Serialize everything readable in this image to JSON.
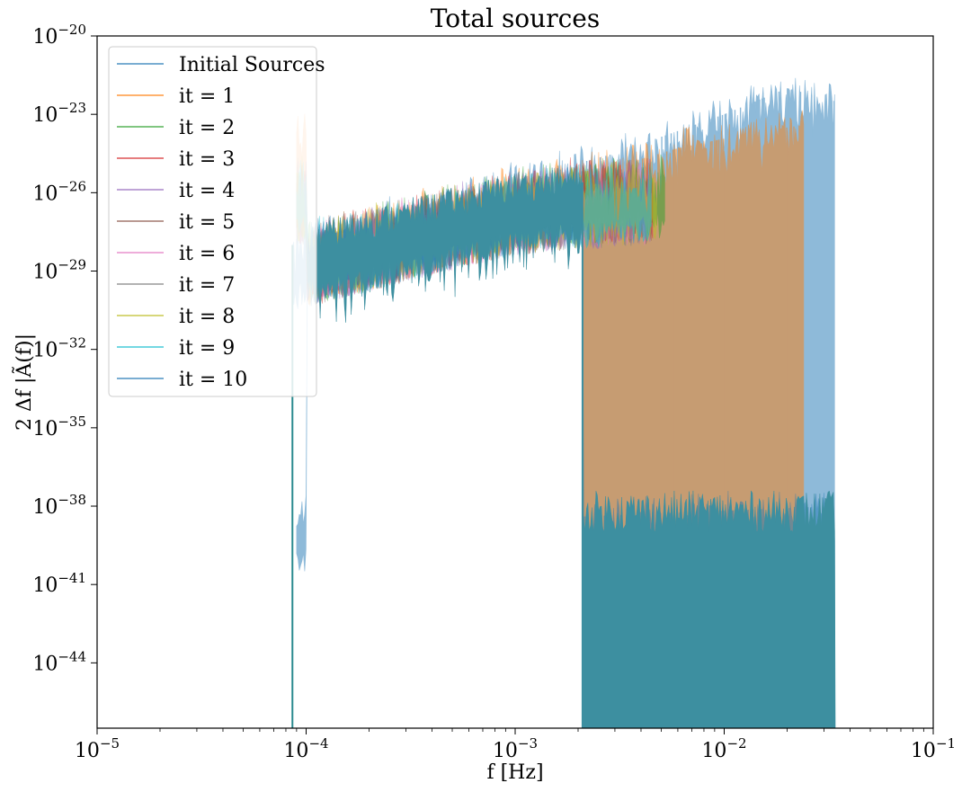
{
  "chart_data": {
    "type": "line",
    "title": "Total sources",
    "xlabel": "f [Hz]",
    "ylabel": "2 Δf |Ã(f)|",
    "xscale": "log",
    "yscale": "log",
    "xlim": [
      1e-05,
      0.1
    ],
    "ylim_exponent": [
      -46.5,
      -20
    ],
    "x_ticks": [
      {
        "base": "10",
        "exp": "−5",
        "value_exp": -5
      },
      {
        "base": "10",
        "exp": "−4",
        "value_exp": -4
      },
      {
        "base": "10",
        "exp": "−3",
        "value_exp": -3
      },
      {
        "base": "10",
        "exp": "−2",
        "value_exp": -2
      },
      {
        "base": "10",
        "exp": "−1",
        "value_exp": -1
      }
    ],
    "y_ticks": [
      {
        "base": "10",
        "exp": "−20",
        "value_exp": -20
      },
      {
        "base": "10",
        "exp": "−23",
        "value_exp": -23
      },
      {
        "base": "10",
        "exp": "−26",
        "value_exp": -26
      },
      {
        "base": "10",
        "exp": "−29",
        "value_exp": -29
      },
      {
        "base": "10",
        "exp": "−32",
        "value_exp": -32
      },
      {
        "base": "10",
        "exp": "−35",
        "value_exp": -35
      },
      {
        "base": "10",
        "exp": "−38",
        "value_exp": -38
      },
      {
        "base": "10",
        "exp": "−41",
        "value_exp": -41
      },
      {
        "base": "10",
        "exp": "−44",
        "value_exp": -44
      }
    ],
    "legend_position": "upper-left",
    "series": [
      {
        "name": "Initial Sources",
        "color": "#1f77b4",
        "alpha": 0.5,
        "f_min": 8.6e-05,
        "f_max": 0.034,
        "envelope": [
          [
            8.6e-05,
            -28.0
          ],
          [
            0.0001,
            -27.8
          ],
          [
            0.001,
            -25.5
          ],
          [
            0.003,
            -24.5
          ],
          [
            0.01,
            -23.0
          ],
          [
            0.02,
            -22.0
          ],
          [
            0.034,
            -22.5
          ]
        ]
      },
      {
        "name": "it = 1",
        "color": "#ff7f0e",
        "alpha": 0.5,
        "f_min": 9e-05,
        "f_max": 0.024,
        "envelope": [
          [
            0.0001,
            -27.8
          ],
          [
            0.001,
            -25.6
          ],
          [
            0.003,
            -25.0
          ],
          [
            0.006,
            -24.3
          ],
          [
            0.012,
            -23.8
          ],
          [
            0.024,
            -23.4
          ]
        ]
      },
      {
        "name": "it = 2",
        "color": "#2ca02c",
        "alpha": 0.5,
        "f_min": 9e-05,
        "f_max": 0.0052,
        "envelope": [
          [
            0.0001,
            -27.8
          ],
          [
            0.001,
            -25.7
          ],
          [
            0.0025,
            -25.2
          ],
          [
            0.0052,
            -25.2
          ]
        ]
      },
      {
        "name": "it = 3",
        "color": "#d62728",
        "alpha": 0.5,
        "f_min": 9e-05,
        "f_max": 0.0046,
        "envelope": [
          [
            0.0001,
            -27.8
          ],
          [
            0.001,
            -25.8
          ],
          [
            0.002,
            -25.3
          ],
          [
            0.0046,
            -25.3
          ]
        ]
      },
      {
        "name": "it = 4",
        "color": "#9467bd",
        "alpha": 0.5,
        "f_min": 9e-05,
        "f_max": 0.0045,
        "envelope": [
          [
            0.0001,
            -27.8
          ],
          [
            0.001,
            -25.8
          ],
          [
            0.0045,
            -25.4
          ]
        ]
      },
      {
        "name": "it = 5",
        "color": "#8c564b",
        "alpha": 0.5,
        "f_min": 9e-05,
        "f_max": 0.0045,
        "envelope": [
          [
            0.0001,
            -27.8
          ],
          [
            0.001,
            -25.8
          ],
          [
            0.0045,
            -25.4
          ]
        ]
      },
      {
        "name": "it = 6",
        "color": "#e377c2",
        "alpha": 0.5,
        "f_min": 9e-05,
        "f_max": 0.0045,
        "envelope": [
          [
            0.0001,
            -27.8
          ],
          [
            0.001,
            -25.8
          ],
          [
            0.0045,
            -25.4
          ]
        ]
      },
      {
        "name": "it = 7",
        "color": "#7f7f7f",
        "alpha": 0.5,
        "f_min": 9e-05,
        "f_max": 0.0045,
        "envelope": [
          [
            0.0001,
            -27.8
          ],
          [
            0.001,
            -25.8
          ],
          [
            0.0045,
            -25.4
          ]
        ]
      },
      {
        "name": "it = 8",
        "color": "#bcbd22",
        "alpha": 0.5,
        "f_min": 9e-05,
        "f_max": 0.0048,
        "envelope": [
          [
            0.0001,
            -27.8
          ],
          [
            0.001,
            -25.8
          ],
          [
            0.0048,
            -25.3
          ]
        ]
      },
      {
        "name": "it = 9",
        "color": "#17becf",
        "alpha": 0.5,
        "f_min": 9e-05,
        "f_max": 0.0045,
        "envelope": [
          [
            0.0001,
            -27.8
          ],
          [
            0.001,
            -25.8
          ],
          [
            0.0045,
            -25.4
          ]
        ]
      },
      {
        "name": "it = 10",
        "color": "#1f77b4",
        "alpha": 0.5,
        "f_min": 9e-05,
        "f_max": 0.034,
        "envelope": [
          [
            0.0001,
            -27.8
          ],
          [
            0.001,
            -25.8
          ],
          [
            0.0021,
            -25.5
          ],
          [
            0.0021,
            -38.4
          ],
          [
            0.034,
            -38.0
          ]
        ]
      }
    ]
  }
}
